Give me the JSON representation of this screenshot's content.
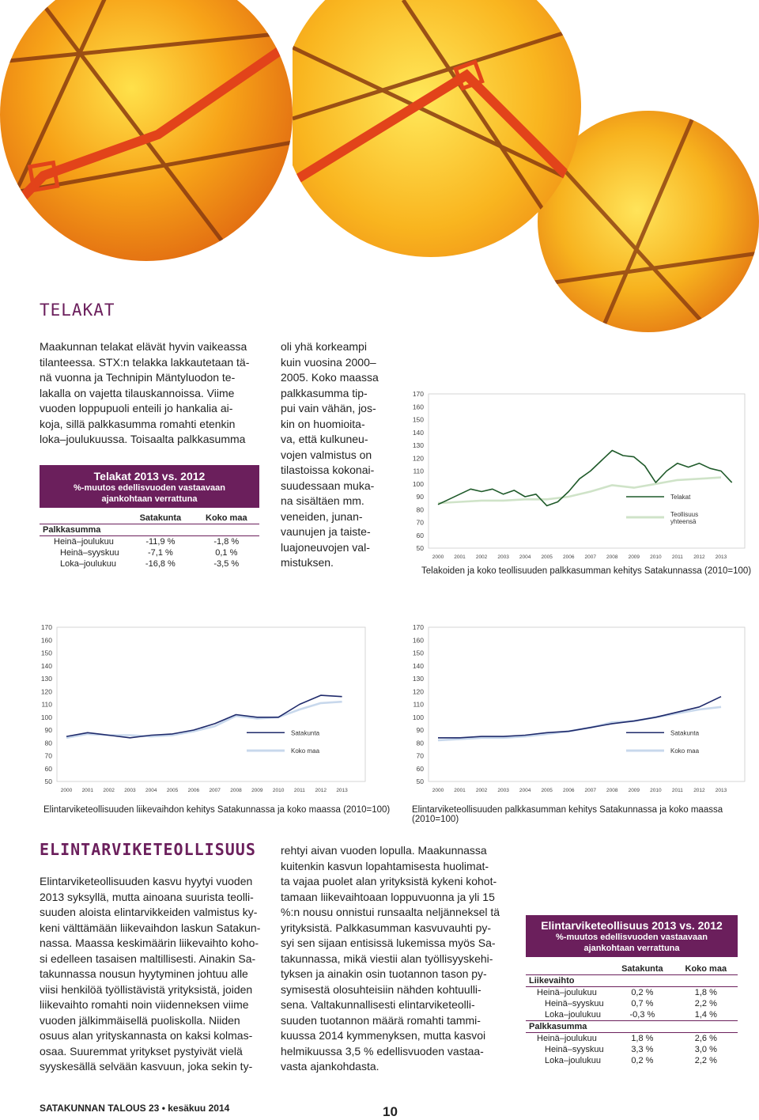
{
  "telakat": {
    "heading": "TELAKAT",
    "col1": "Maakunnan telakat elävät hyvin vaikeassa\ntilanteessa. STX:n telakka lakkautetaan tä-\nnä vuonna ja Technipin Mäntyluodon te-\nlakalla on vajetta tilauskannoissa. Viime\nvuoden loppupuoli enteili jo hankalia ai-\nkoja, sillä palkkasumma romahti etenkin\nloka–joulukuussa. Toisaalta palkkasumma",
    "col2": "oli yhä korkeampi\nkuin vuosina 2000–\n2005. Koko maassa\npalkkasumma tip-\npui vain vähän, jos-\nkin on huomioita-\nva, että kulkuneu-\nvojen valmistus on\ntilastoissa kokonai-\nsuudessaan muka-\nna sisältäen mm.\nveneiden, junan-\nvaunujen ja taiste-\nluajoneuvojen val-\nmistuksen.",
    "table": {
      "title": "Telakat 2013 vs. 2012",
      "subtitle": "%-muutos edellisvuoden vastaavaan\najankohtaan verrattuna",
      "col_a": "Satakunta",
      "col_b": "Koko maa",
      "group": "Palkkasumma",
      "rows": [
        {
          "label": "Heinä–joulukuu",
          "a": "-11,9 %",
          "b": "-1,8 %"
        },
        {
          "label": "Heinä–syyskuu",
          "a": "-7,1 %",
          "b": "0,1 %"
        },
        {
          "label": "Loka–joulukuu",
          "a": "-16,8 %",
          "b": "-3,5 %"
        }
      ]
    }
  },
  "elintarvike": {
    "heading": "ELINTARVIKETEOLLISUUS",
    "col1": "Elintarviketeollisuuden kasvu hyytyi vuoden\n2013 syksyllä, mutta ainoana suurista teolli-\nsuuden aloista elintarvikkeiden valmistus ky-\nkeni välttämään liikevaihdon laskun Satakun-\nnassa. Maassa keskimäärin liikevaihto koho-\nsi edelleen tasaisen maltillisesti. Ainakin Sa-\ntakunnassa nousun hyytyminen johtuu alle\nviisi henkilöä työllistävistä yrityksistä, joiden\nliikevaihto romahti noin viidenneksen viime\nvuoden jälkimmäisellä puoliskolla. Niiden\nosuus alan yrityskannasta on kaksi kolmas-\nosaa. Suuremmat yritykset pystyivät vielä\nsyyskesällä selvään kasvuun, joka sekin ty-",
    "col2": "rehtyi aivan vuoden lopulla. Maakunnassa\nkuitenkin kasvun lopahtamisesta huolimat-\nta vajaa puolet alan yrityksistä kykeni kohot-\ntamaan liikevaihtoaan loppuvuonna ja yli 15\n%:n nousu onnistui runsaalta neljänneksel tä\nyrityksistä. Palkkasumman kasvuvauhti py-\nsyi sen sijaan entisissä lukemissa myös Sa-\ntakunnassa, mikä viestii alan työllisyyskehi-\ntyksen ja ainakin osin tuotannon tason py-\nsymisestä olosuhteisiin nähden kohtuulli-\nsena. Valtakunnallisesti elintarviketeolli-\nsuuden tuotannon määrä romahti tammi-\nkuussa 2014 kymmenyksen, mutta kasvoi\nhelmikuussa 3,5 % edellisvuoden vastaa-\nvasta ajankohdasta.",
    "table": {
      "title": "Elintarviketeollisuus 2013 vs. 2012",
      "subtitle": "%-muutos edellisvuoden vastaavaan\najankohtaan verrattuna",
      "col_a": "Satakunta",
      "col_b": "Koko maa",
      "groups": [
        {
          "name": "Liikevaihto",
          "rows": [
            {
              "label": "Heinä–joulukuu",
              "a": "0,2 %",
              "b": "1,8 %"
            },
            {
              "label": "Heinä–syyskuu",
              "a": "0,7 %",
              "b": "2,2 %"
            },
            {
              "label": "Loka–joulukuu",
              "a": "-0,3 %",
              "b": "1,4 %"
            }
          ]
        },
        {
          "name": "Palkkasumma",
          "rows": [
            {
              "label": "Heinä–joulukuu",
              "a": "1,8 %",
              "b": "2,6 %"
            },
            {
              "label": "Heinä–syyskuu",
              "a": "3,3 %",
              "b": "3,0 %"
            },
            {
              "label": "Loka–joulukuu",
              "a": "0,2 %",
              "b": "2,2 %"
            }
          ]
        }
      ]
    }
  },
  "footer": {
    "publication": "SATAKUNNAN TALOUS 23",
    "bullet": "•",
    "date": "kesäkuu 2014",
    "page": "10"
  },
  "colors": {
    "accent": "#6b1f5c",
    "satakunta_line": "#1f2a6b",
    "koko_maa_line": "#c8d8ec",
    "telakat_line": "#1f5a2a",
    "teollisuus_line": "#cfe3c8"
  },
  "chart_data": [
    {
      "type": "line",
      "caption": "Telakoiden ja koko teollisuuden palkkasumman kehitys Satakunnassa (2010=100)",
      "ylim": [
        50,
        170
      ],
      "yticks": [
        170,
        160,
        150,
        140,
        130,
        120,
        110,
        100,
        90,
        80,
        70,
        60,
        50
      ],
      "xticks": [
        "2000",
        "2001",
        "2002",
        "2003",
        "2004",
        "2005",
        "2006",
        "2007",
        "2008",
        "2009",
        "2010",
        "2011",
        "2012",
        "2013"
      ],
      "legend": "right",
      "series": [
        {
          "name": "Telakat",
          "color": "#1f5a2a",
          "x": [
            2000,
            2000.5,
            2001,
            2001.5,
            2002,
            2002.5,
            2003,
            2003.5,
            2004,
            2004.5,
            2005,
            2005.5,
            2006,
            2006.5,
            2007,
            2007.5,
            2008,
            2008.5,
            2009,
            2009.5,
            2010,
            2010.5,
            2011,
            2011.5,
            2012,
            2012.5,
            2013,
            2013.5
          ],
          "values": [
            84,
            88,
            92,
            96,
            94,
            96,
            92,
            95,
            90,
            92,
            83,
            86,
            94,
            104,
            110,
            118,
            126,
            122,
            121,
            114,
            101,
            110,
            116,
            113,
            116,
            112,
            110,
            101
          ]
        },
        {
          "name": "Teollisuus yhteensä",
          "color": "#cfe3c8",
          "x": [
            2000,
            2001,
            2002,
            2003,
            2004,
            2005,
            2006,
            2007,
            2008,
            2009,
            2010,
            2011,
            2012,
            2013
          ],
          "values": [
            85,
            86,
            87,
            87,
            88,
            88,
            90,
            94,
            99,
            97,
            100,
            103,
            104,
            105
          ]
        }
      ]
    },
    {
      "type": "line",
      "caption": "Elintarviketeollisuuden liikevaihdon kehitys Satakunnassa ja koko maassa (2010=100)",
      "ylim": [
        50,
        170
      ],
      "yticks": [
        170,
        160,
        150,
        140,
        130,
        120,
        110,
        100,
        90,
        80,
        70,
        60,
        50
      ],
      "xticks": [
        "2000",
        "2001",
        "2002",
        "2003",
        "2004",
        "2005",
        "2006",
        "2007",
        "2008",
        "2009",
        "2010",
        "2011",
        "2012",
        "2013"
      ],
      "legend": "right",
      "series": [
        {
          "name": "Satakunta",
          "color": "#1f2a6b",
          "x": [
            2000,
            2001,
            2002,
            2003,
            2004,
            2005,
            2006,
            2007,
            2008,
            2009,
            2010,
            2011,
            2012,
            2013
          ],
          "values": [
            85,
            88,
            86,
            84,
            86,
            87,
            90,
            95,
            102,
            100,
            100,
            110,
            117,
            116
          ]
        },
        {
          "name": "Koko maa",
          "color": "#c8d8ec",
          "x": [
            2000,
            2001,
            2002,
            2003,
            2004,
            2005,
            2006,
            2007,
            2008,
            2009,
            2010,
            2011,
            2012,
            2013
          ],
          "values": [
            84,
            87,
            86,
            86,
            85,
            86,
            89,
            93,
            101,
            99,
            100,
            106,
            111,
            112
          ]
        }
      ]
    },
    {
      "type": "line",
      "caption": "Elintarviketeollisuuden palkkasumman kehitys Satakunnassa ja koko maassa (2010=100)",
      "ylim": [
        50,
        170
      ],
      "yticks": [
        170,
        160,
        150,
        140,
        130,
        120,
        110,
        100,
        90,
        80,
        70,
        60,
        50
      ],
      "xticks": [
        "2000",
        "2001",
        "2002",
        "2003",
        "2004",
        "2005",
        "2006",
        "2007",
        "2008",
        "2009",
        "2010",
        "2011",
        "2012",
        "2013"
      ],
      "legend": "right",
      "series": [
        {
          "name": "Satakunta",
          "color": "#1f2a6b",
          "x": [
            2000,
            2001,
            2002,
            2003,
            2004,
            2005,
            2006,
            2007,
            2008,
            2009,
            2010,
            2011,
            2012,
            2013
          ],
          "values": [
            84,
            84,
            85,
            85,
            86,
            88,
            89,
            92,
            95,
            97,
            100,
            104,
            108,
            116
          ]
        },
        {
          "name": "Koko maa",
          "color": "#c8d8ec",
          "x": [
            2000,
            2001,
            2002,
            2003,
            2004,
            2005,
            2006,
            2007,
            2008,
            2009,
            2010,
            2011,
            2012,
            2013
          ],
          "values": [
            82,
            83,
            84,
            84,
            85,
            87,
            89,
            92,
            96,
            97,
            100,
            103,
            106,
            108
          ]
        }
      ]
    }
  ]
}
